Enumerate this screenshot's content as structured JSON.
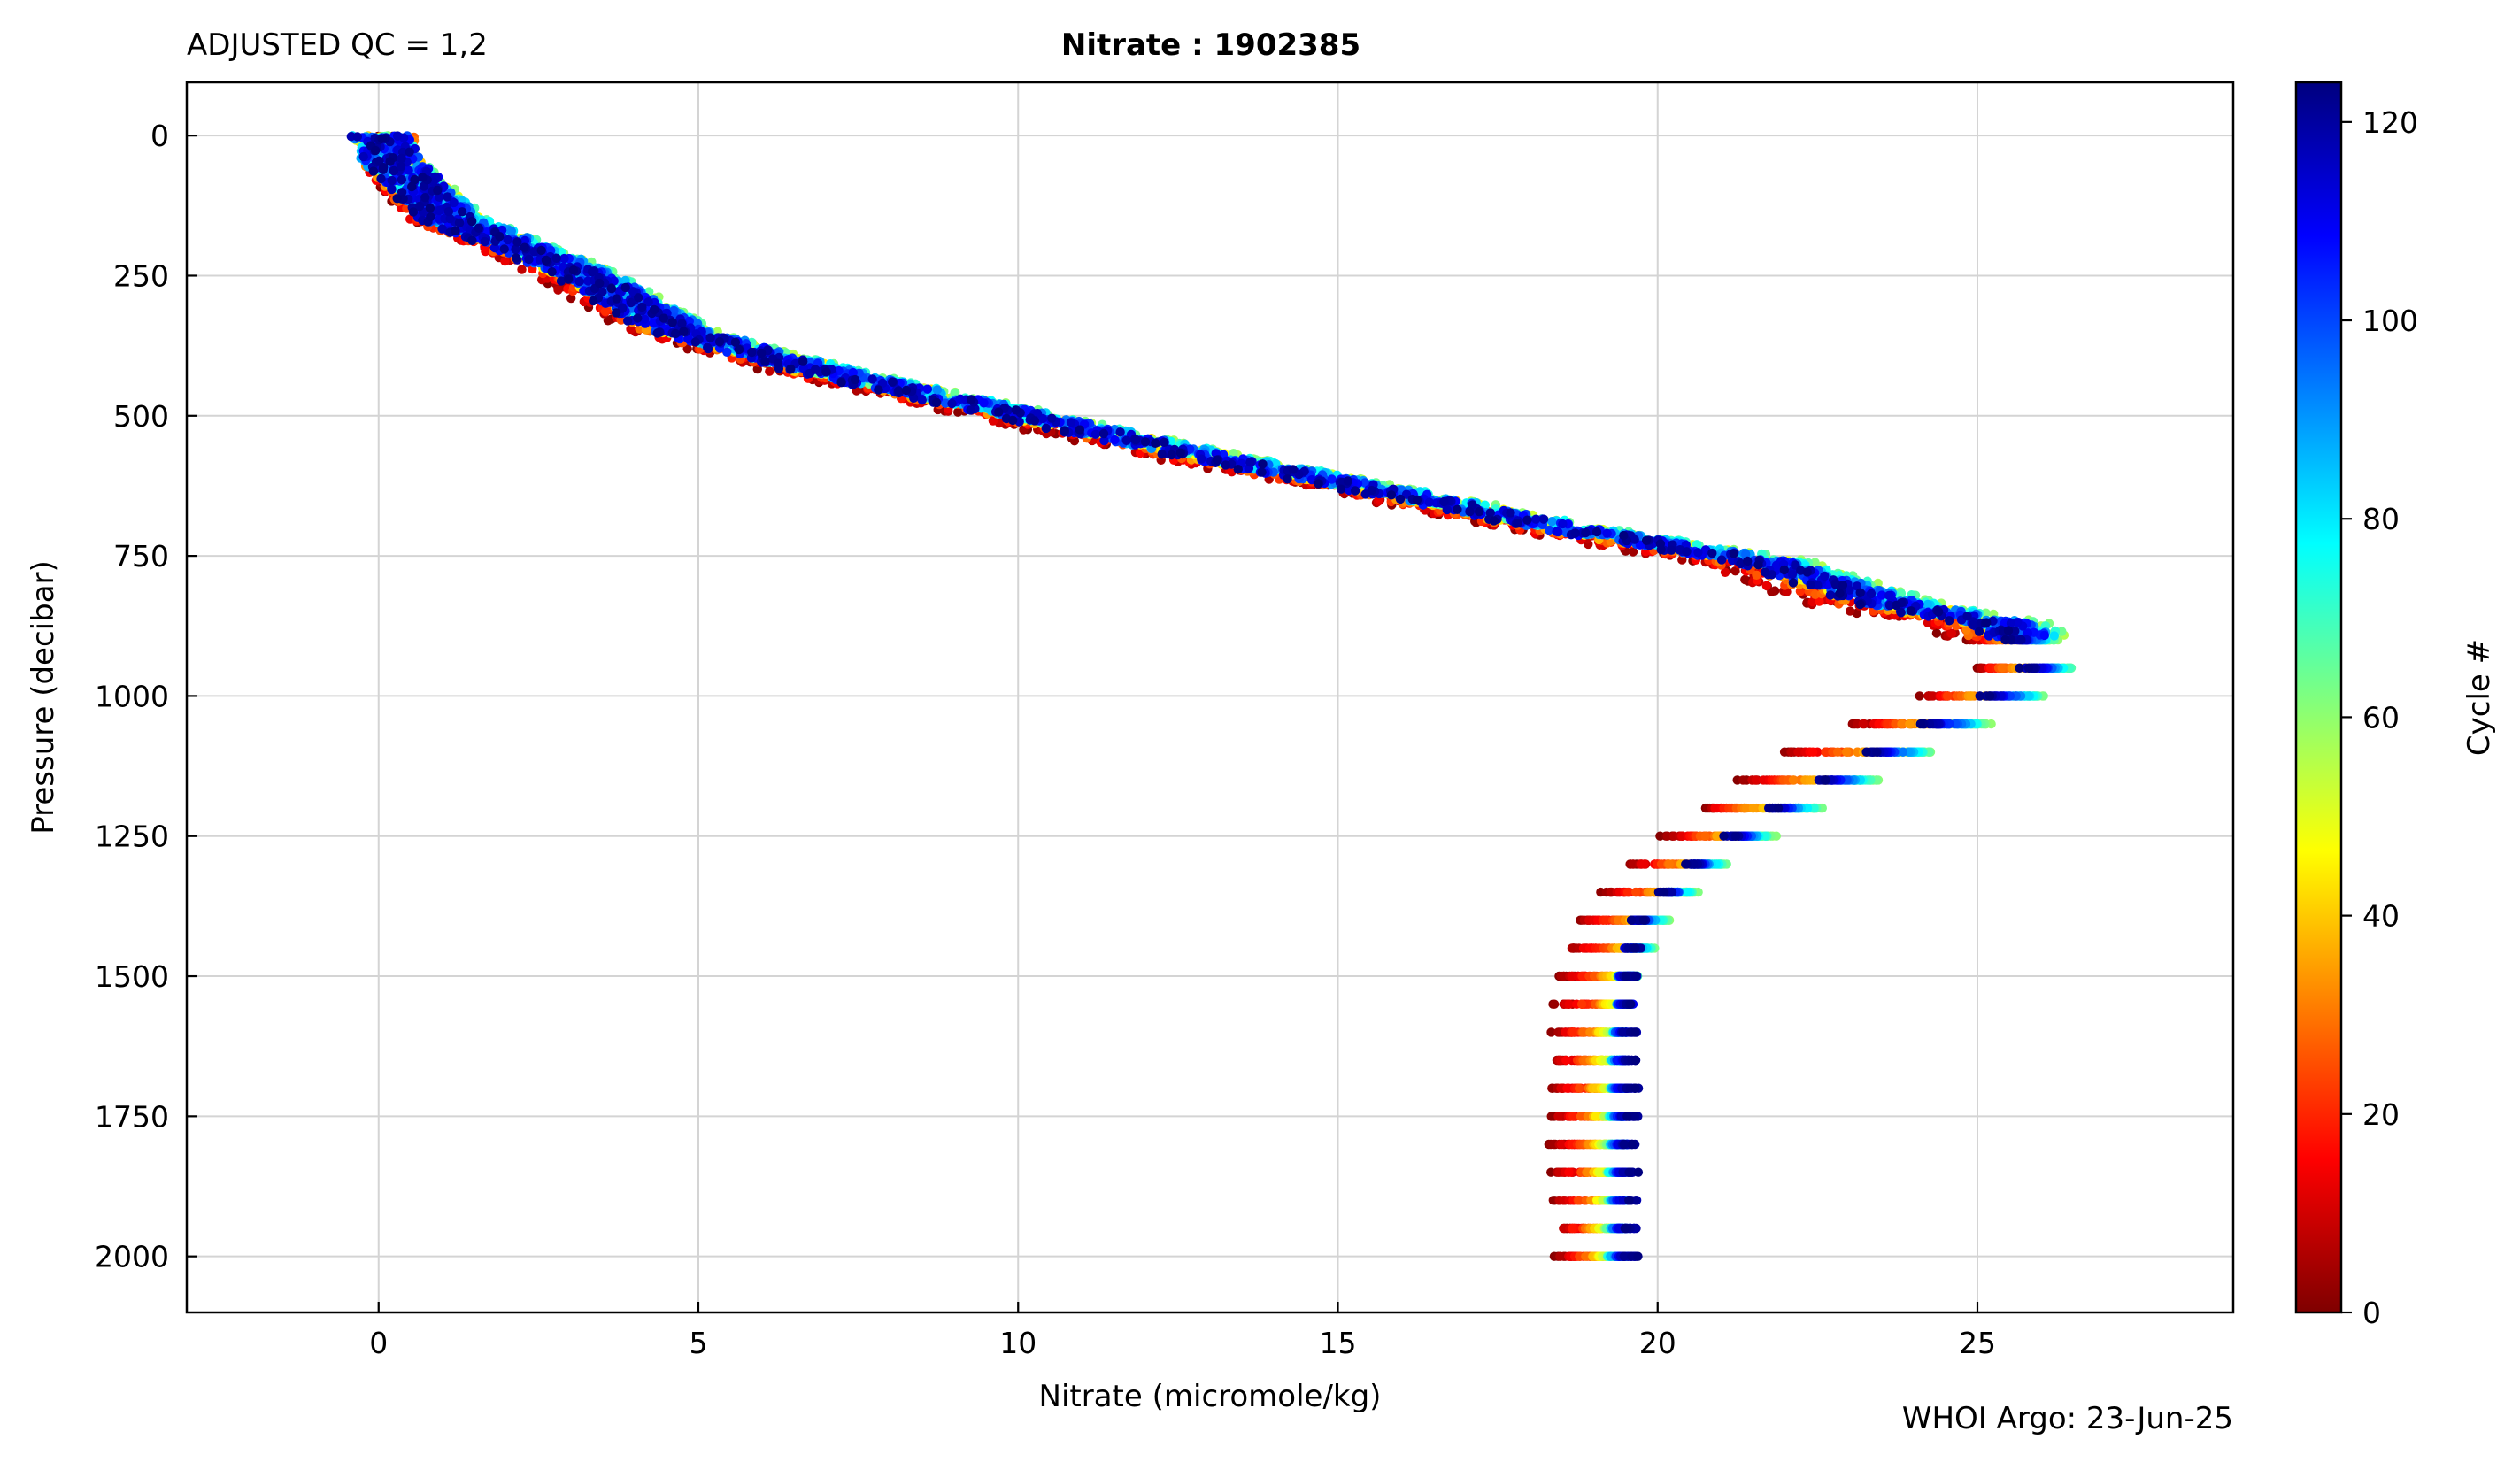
{
  "chart_data": {
    "type": "scatter",
    "title_left": "ADJUSTED QC = 1,2",
    "title_center": "Nitrate : 1902385",
    "xlabel": "Nitrate  (micromole/kg)",
    "ylabel": "Pressure  (decibar)",
    "colorbar_label": "Cycle #",
    "footer": "WHOI Argo: 23-Jun-25",
    "xlim": [
      -3,
      29
    ],
    "ylim": [
      2100,
      -95
    ],
    "y_inverted": true,
    "grid": true,
    "x_ticks": [
      0,
      5,
      10,
      15,
      20,
      25
    ],
    "y_ticks": [
      0,
      250,
      500,
      750,
      1000,
      1250,
      1500,
      1750,
      2000
    ],
    "colorbar": {
      "colormap": "jet_reversed",
      "range": [
        0,
        124
      ],
      "ticks": [
        0,
        20,
        40,
        60,
        80,
        100,
        120
      ],
      "colors": [
        "#7f0000",
        "#ff0000",
        "#ff7f00",
        "#ffff00",
        "#7fff7f",
        "#00ffff",
        "#007fff",
        "#0000ff",
        "#00007f"
      ]
    },
    "cycles": {
      "first": 1,
      "last": 124
    },
    "profile_by_cycle": [
      {
        "name": "cycle 1",
        "cycle": 1,
        "nitrate": [
          0.1,
          0.2,
          0.8,
          1.8,
          2.8,
          4.3,
          6.4,
          9.5,
          12.2,
          14.9,
          17.8,
          20.8,
          22.8,
          24.5,
          25.4,
          24.2,
          22.0,
          20.7,
          19.6,
          18.8,
          18.5,
          18.4,
          18.4,
          18.5
        ],
        "pressure": [
          0,
          50,
          150,
          200,
          250,
          350,
          420,
          500,
          570,
          630,
          700,
          760,
          840,
          870,
          930,
          1000,
          1100,
          1200,
          1300,
          1400,
          1500,
          1600,
          1800,
          2000
        ]
      },
      {
        "name": "cycle 30",
        "cycle": 30,
        "nitrate": [
          0.1,
          0.2,
          1.0,
          2.1,
          3.1,
          4.6,
          6.8,
          10.0,
          12.7,
          15.4,
          18.3,
          21.4,
          23.5,
          25.0,
          25.8,
          24.8,
          23.0,
          21.4,
          20.3,
          19.5,
          19.2,
          19.0,
          19.0,
          19.0
        ],
        "pressure": [
          0,
          50,
          150,
          200,
          250,
          350,
          420,
          500,
          570,
          630,
          700,
          760,
          840,
          870,
          930,
          1000,
          1100,
          1200,
          1300,
          1400,
          1500,
          1600,
          1800,
          2000
        ]
      },
      {
        "name": "cycle 60",
        "cycle": 60,
        "nitrate": [
          0.0,
          0.3,
          1.3,
          2.4,
          3.4,
          4.9,
          7.1,
          10.3,
          13.1,
          15.8,
          18.8,
          22.0,
          24.2,
          25.7,
          26.6,
          26.0,
          24.2,
          22.5,
          21.0,
          20.1,
          19.6,
          19.4,
          19.3,
          19.3
        ],
        "pressure": [
          0,
          50,
          150,
          200,
          250,
          350,
          420,
          500,
          570,
          630,
          700,
          760,
          840,
          870,
          930,
          1000,
          1100,
          1200,
          1300,
          1400,
          1500,
          1600,
          1800,
          2000
        ]
      },
      {
        "name": "cycle 90",
        "cycle": 90,
        "nitrate": [
          0.0,
          0.2,
          1.2,
          2.3,
          3.3,
          4.8,
          7.0,
          10.2,
          12.9,
          15.6,
          18.6,
          21.7,
          23.9,
          25.4,
          26.3,
          25.6,
          23.8,
          22.1,
          20.7,
          19.8,
          19.5,
          19.4,
          19.4,
          19.4
        ],
        "pressure": [
          0,
          50,
          150,
          200,
          250,
          350,
          420,
          500,
          570,
          630,
          700,
          760,
          840,
          870,
          930,
          1000,
          1100,
          1200,
          1300,
          1400,
          1500,
          1600,
          1800,
          2000
        ]
      },
      {
        "name": "cycle 110",
        "cycle": 110,
        "nitrate": [
          0.0,
          0.3,
          1.1,
          2.2,
          3.2,
          4.7,
          6.9,
          10.1,
          12.8,
          15.5,
          18.5,
          21.6,
          23.8,
          25.3,
          26.2,
          25.3,
          23.5,
          21.9,
          20.6,
          19.7,
          19.5,
          19.5,
          19.5,
          19.5
        ],
        "pressure": [
          0,
          50,
          150,
          200,
          250,
          350,
          420,
          500,
          570,
          630,
          700,
          760,
          840,
          870,
          930,
          1000,
          1100,
          1200,
          1300,
          1400,
          1500,
          1600,
          1800,
          2000
        ]
      },
      {
        "name": "cycle 124",
        "cycle": 124,
        "nitrate": [
          0.0,
          0.2,
          1.0,
          2.1,
          3.1,
          4.6,
          6.8,
          10.0,
          12.7,
          15.4,
          18.4,
          21.5,
          23.6,
          25.1,
          26.0,
          25.1,
          23.3,
          21.8,
          20.5,
          19.7,
          19.6,
          19.6,
          19.6,
          19.6
        ],
        "pressure": [
          0,
          50,
          150,
          200,
          250,
          350,
          420,
          500,
          570,
          630,
          700,
          760,
          840,
          870,
          930,
          1000,
          1100,
          1200,
          1300,
          1400,
          1500,
          1600,
          1800,
          2000
        ]
      }
    ]
  }
}
